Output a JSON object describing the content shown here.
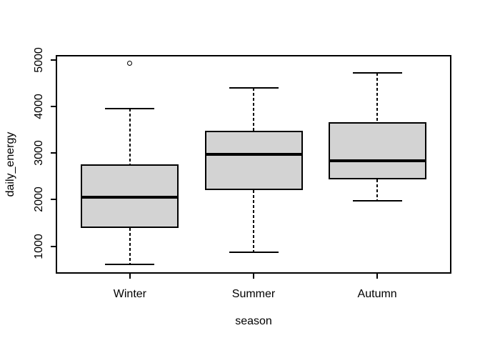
{
  "chart_data": {
    "type": "boxplot",
    "title": "",
    "xlabel": "season",
    "ylabel": "daily_energy",
    "categories": [
      "Winter",
      "Summer",
      "Autumn"
    ],
    "y_ticks": [
      "1000",
      "2000",
      "3000",
      "4000",
      "5000"
    ],
    "ylim": [
      410,
      5110
    ],
    "grid": false,
    "legend": false,
    "boxes": [
      {
        "category": "Winter",
        "lower_whisker": 610,
        "q1": 1390,
        "median": 2060,
        "q3": 2760,
        "upper_whisker": 3960,
        "outliers": [
          4920
        ]
      },
      {
        "category": "Summer",
        "lower_whisker": 870,
        "q1": 2200,
        "median": 2980,
        "q3": 3480,
        "upper_whisker": 4400,
        "outliers": []
      },
      {
        "category": "Autumn",
        "lower_whisker": 1980,
        "q1": 2440,
        "median": 2840,
        "q3": 3670,
        "upper_whisker": 4730,
        "outliers": []
      }
    ],
    "colors": {
      "box_fill": "#d3d3d3",
      "line": "#000000",
      "background": "#ffffff"
    }
  }
}
